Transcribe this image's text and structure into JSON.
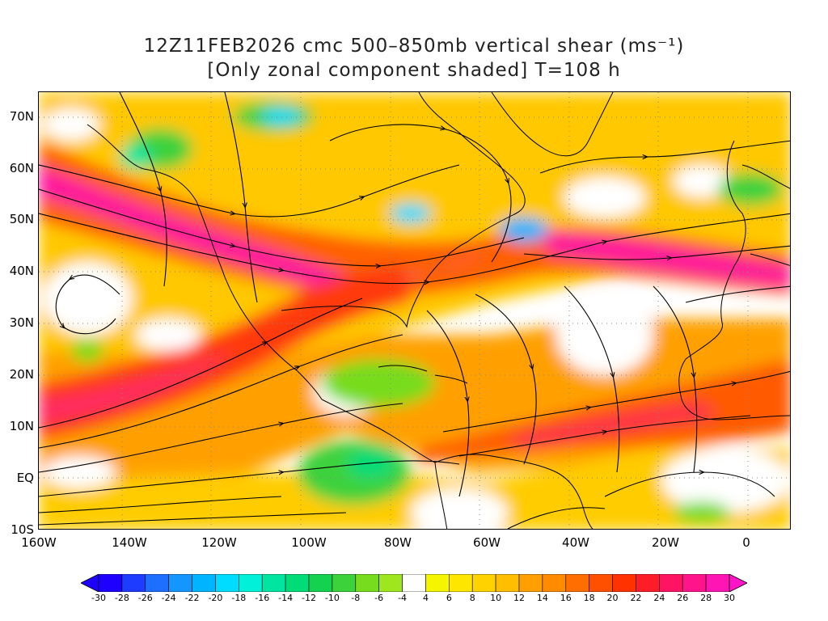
{
  "title": {
    "line1": "12Z11FEB2026 cmc 500–850mb vertical shear (ms⁻¹)",
    "line2": "[Only zonal component shaded] T=108 h"
  },
  "axes": {
    "lat_labels": [
      "70N",
      "60N",
      "50N",
      "40N",
      "30N",
      "20N",
      "10N",
      "EQ",
      "10S"
    ],
    "lon_labels": [
      "160W",
      "140W",
      "120W",
      "100W",
      "80W",
      "60W",
      "40W",
      "20W",
      "0"
    ]
  },
  "colorbar": {
    "labels": [
      "-30",
      "-28",
      "-26",
      "-24",
      "-22",
      "-20",
      "-18",
      "-16",
      "-14",
      "-12",
      "-10",
      "-8",
      "-6",
      "-4",
      "4",
      "6",
      "8",
      "10",
      "12",
      "14",
      "16",
      "18",
      "20",
      "22",
      "24",
      "26",
      "28",
      "30"
    ],
    "colors": [
      "#1e00ff",
      "#1e3cff",
      "#1e6eff",
      "#1496ff",
      "#00b4ff",
      "#00dcff",
      "#00f0d8",
      "#00e6a0",
      "#00dc78",
      "#14d250",
      "#3cd23c",
      "#78dc1e",
      "#a0e61e",
      "#ffffff",
      "#f5f500",
      "#ffe600",
      "#ffd200",
      "#ffbe00",
      "#ffa000",
      "#ff8c00",
      "#ff6e00",
      "#ff5000",
      "#ff3200",
      "#ff1e28",
      "#ff1464",
      "#ff148c",
      "#ff14b4"
    ],
    "low_color": "#1e00ff",
    "high_color": "#ff14c8"
  },
  "shading_legend": {
    "units": "ms-1",
    "component": "zonal"
  }
}
